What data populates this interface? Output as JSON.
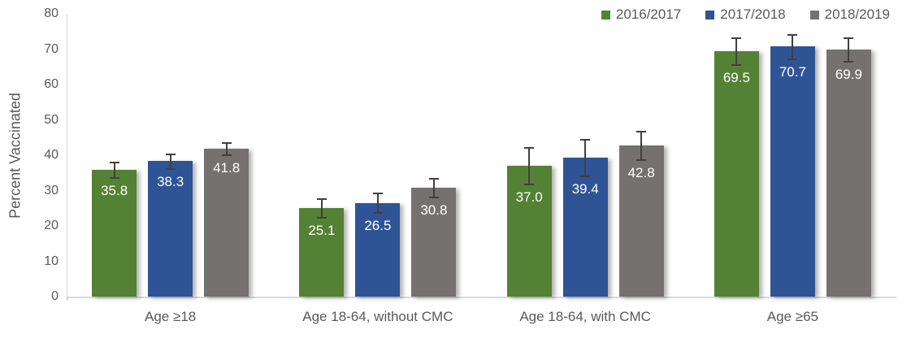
{
  "chart_data": {
    "type": "bar",
    "title": "",
    "ylabel": "Percent Vaccinated",
    "xlabel": "",
    "ylim": [
      0,
      80
    ],
    "ytick_step": 10,
    "grid": false,
    "legend_position": "top-right",
    "error_bars": true,
    "categories": [
      "Age ≥18",
      "Age 18-64, without CMC",
      "Age 18-64, with CMC",
      "Age ≥65"
    ],
    "series": [
      {
        "name": "2016/2017",
        "color": "#548235",
        "values": [
          35.8,
          25.1,
          37.0,
          69.5
        ],
        "errors": [
          2.3,
          2.8,
          5.2,
          3.9
        ]
      },
      {
        "name": "2017/2018",
        "color": "#2F5496",
        "values": [
          38.3,
          26.5,
          39.4,
          70.7
        ],
        "errors": [
          2.1,
          2.9,
          5.3,
          3.6
        ]
      },
      {
        "name": "2018/2019",
        "color": "#757171",
        "values": [
          41.8,
          30.8,
          42.8,
          69.9
        ],
        "errors": [
          1.9,
          2.8,
          4.1,
          3.4
        ]
      }
    ]
  },
  "colors": {
    "axis_text": "#595959",
    "axis_line": "#D9D9D9",
    "error_bar": "#404040",
    "bar_label_text": "#FFFFFF",
    "background": "#FFFFFF"
  }
}
